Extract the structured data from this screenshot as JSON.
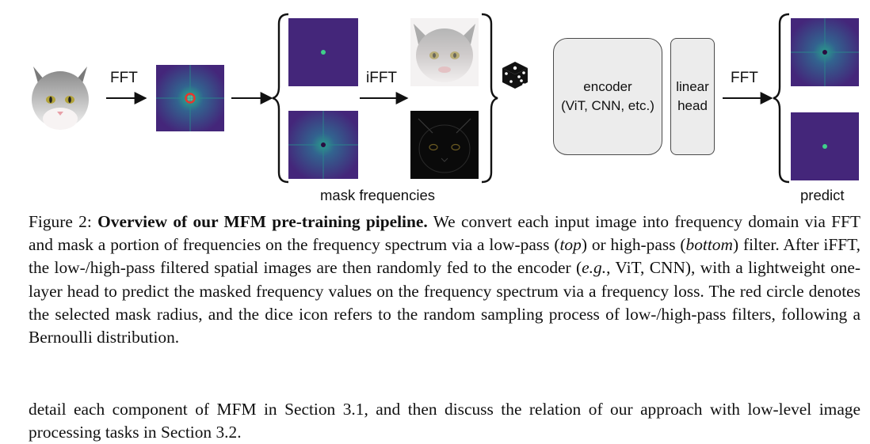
{
  "diagram": {
    "fft_label_1": "FFT",
    "ifft_label": "iFFT",
    "fft_label_2": "FFT",
    "encoder_line1": "encoder",
    "encoder_line2": "(ViT, CNN, etc.)",
    "head_line1": "linear",
    "head_line2": "head",
    "mask_frequencies_label": "mask frequencies",
    "predict_label": "predict",
    "colors": {
      "spectrum_bg": "#44267a",
      "spectrum_glow": "#2a8a8c",
      "mask_circle": "#e8362d",
      "low_dot": "#3fd08a",
      "block_fill": "#ececec"
    }
  },
  "caption": {
    "figure_label": "Figure 2:",
    "title": "Overview of our MFM pre-training pipeline.",
    "t1": "We convert each input image into frequency domain via FFT and mask a portion of frequencies on the frequency spectrum via a low-pass (",
    "top": "top",
    "t2": ") or high-pass (",
    "bottom": "bottom",
    "t3": ") filter. After iFFT, the low-/high-pass filtered spatial images are then randomly fed to the encoder (",
    "eg": "e.g.",
    "t4": ", ViT, CNN), with a lightweight one-layer head to predict the masked frequency values on the frequency spectrum via a frequency loss. The red circle denotes the selected mask radius, and the dice icon refers to the random sampling process of low-/high-pass filters, following a Bernoulli distribution."
  },
  "body": {
    "paragraph": "detail each component of MFM in Section 3.1, and then discuss the relation of our approach with low-level image processing tasks in Section 3.2."
  }
}
